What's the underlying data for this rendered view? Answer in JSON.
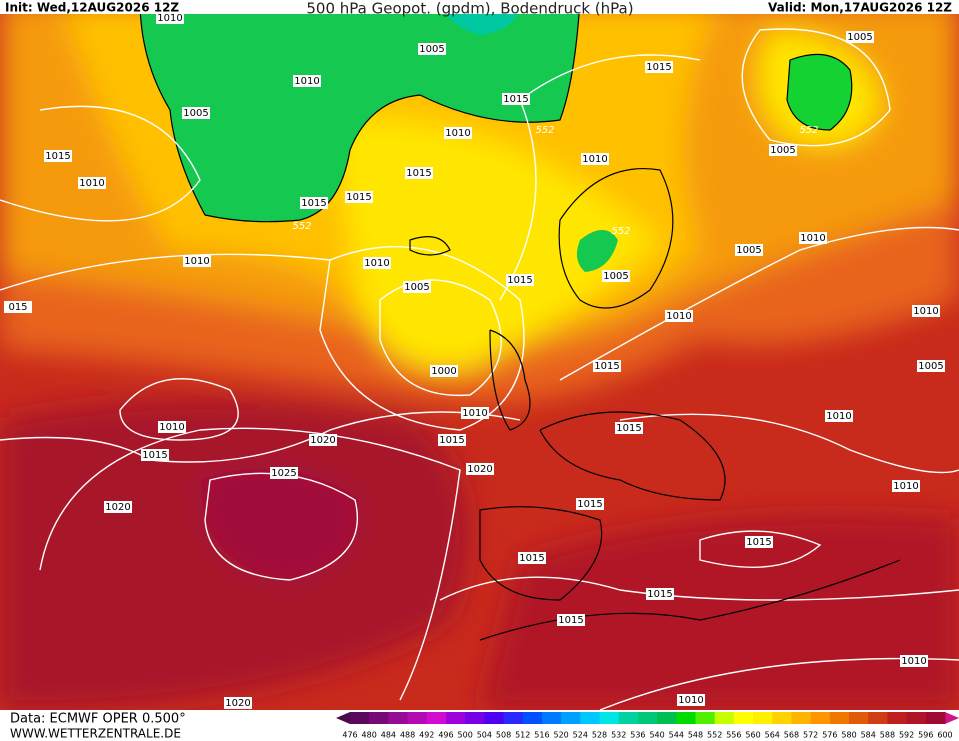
{
  "header": {
    "init": "Init: Wed,12AUG2026 12Z",
    "title": "500 hPa Geopot. (gpdm), Bodendruck (hPa)",
    "valid": "Valid: Mon,17AUG2026 12Z"
  },
  "isobar_labels": [
    "1010",
    "1005",
    "1015",
    "1005",
    "1010",
    "1015",
    "1005",
    "1010",
    "1015",
    "1010",
    "1005",
    "1015",
    "1010",
    "1015",
    "1015",
    "1010",
    "1010",
    "1005",
    "1010",
    "1005",
    "1015",
    "1005",
    "015",
    "1010",
    "1010",
    "1000",
    "1015",
    "1005",
    "1010",
    "1010",
    "1010",
    "1015",
    "1015",
    "1020",
    "1015",
    "1020",
    "1025",
    "1010",
    "1020",
    "1015",
    "1015",
    "1015",
    "1015",
    "1015",
    "1010",
    "1020",
    "1010"
  ],
  "geopotential_labels": [
    "552",
    "552",
    "552",
    "552"
  ],
  "scale": {
    "labels": [
      476,
      480,
      484,
      488,
      492,
      496,
      500,
      504,
      508,
      512,
      516,
      520,
      524,
      528,
      532,
      536,
      540,
      544,
      548,
      552,
      556,
      560,
      564,
      568,
      572,
      576,
      580,
      584,
      588,
      592,
      596,
      600
    ],
    "colors": [
      "#5a0a5a",
      "#780a78",
      "#960a96",
      "#b40ab4",
      "#d20ad2",
      "#a000dc",
      "#7800e6",
      "#5000f0",
      "#2828ff",
      "#0050ff",
      "#0078ff",
      "#00a0ff",
      "#00c8ff",
      "#00e6e6",
      "#00d2a0",
      "#00c878",
      "#00be50",
      "#00dc00",
      "#50f000",
      "#c8ff00",
      "#ffff00",
      "#fff000",
      "#ffd200",
      "#ffb400",
      "#ff9600",
      "#f07800",
      "#e05a0a",
      "#d03c14",
      "#c01e1e",
      "#b01428",
      "#a00a32"
    ]
  },
  "footer": {
    "source": "Data: ECMWF OPER 0.500°",
    "site": "WWW.WETTERZENTRALE.DE"
  }
}
